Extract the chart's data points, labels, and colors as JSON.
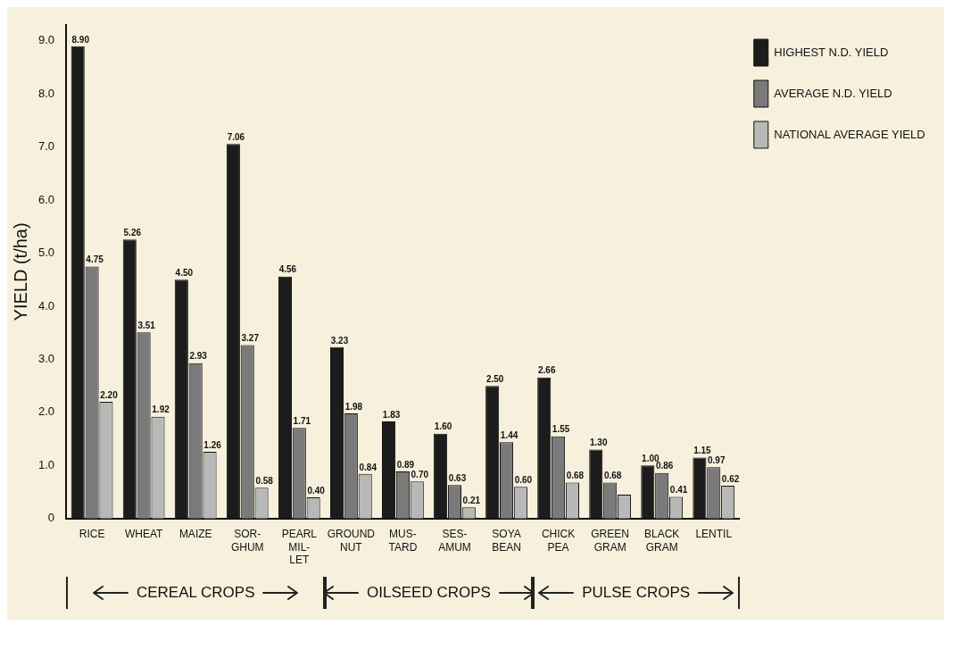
{
  "chart_data": {
    "type": "bar",
    "ylabel": "YIELD (t/ha)",
    "categories": [
      "RICE",
      "WHEAT",
      "MAIZE",
      "SOR-\nGHUM",
      "PEARL\nMIL-\nLET",
      "GROUND\nNUT",
      "MUS-\nTARD",
      "SES-\nAMUM",
      "SOYA\nBEAN",
      "CHICK\nPEA",
      "GREEN\nGRAM",
      "BLACK\nGRAM",
      "LENTIL"
    ],
    "series": [
      {
        "name": "HIGHEST N.D. YIELD",
        "color": "#1c1c1c",
        "values": [
          8.9,
          5.26,
          4.5,
          7.06,
          4.56,
          3.23,
          1.83,
          1.6,
          2.5,
          2.66,
          1.3,
          1.0,
          1.15
        ],
        "value_labels": [
          "8.90",
          "5.26",
          "4.50",
          "7.06",
          "4.56",
          "3.23",
          "1.83",
          "1.60",
          "2.50",
          "2.66",
          "1.30",
          "1.00",
          "1.15"
        ]
      },
      {
        "name": "AVERAGE N.D. YIELD",
        "color": "#7a7a7a",
        "values": [
          4.75,
          3.51,
          2.93,
          3.27,
          1.71,
          1.98,
          0.89,
          0.63,
          1.44,
          1.55,
          0.68,
          0.86,
          0.97
        ],
        "value_labels": [
          "4.75",
          "3.51",
          "2.93",
          "3.27",
          "1.71",
          "1.98",
          "0.89",
          "0.63",
          "1.44",
          "1.55",
          "0.68",
          "0.86",
          "0.97"
        ]
      },
      {
        "name": "NATIONAL AVERAGE YIELD",
        "color": "#b8b8b8",
        "values": [
          2.2,
          1.92,
          1.26,
          0.58,
          0.4,
          0.84,
          0.7,
          0.21,
          0.6,
          0.68,
          0.45,
          0.41,
          0.62
        ],
        "value_labels": [
          "2.20",
          "1.92",
          "1.26",
          "0.58",
          "0.40",
          "0.84",
          "0.70",
          "0.21",
          "0.60",
          "0.68",
          null,
          "0.41",
          "0.62"
        ]
      }
    ],
    "ylim": [
      0,
      9.3
    ],
    "yticks": [
      0,
      {
        "value": 1,
        "label": "1.0"
      },
      {
        "value": 2,
        "label": "2.0"
      },
      {
        "value": 3,
        "label": "3.0"
      },
      {
        "value": 4,
        "label": "4.0"
      },
      {
        "value": 5,
        "label": "5.0"
      },
      {
        "value": 6,
        "label": "6.0"
      },
      {
        "value": 7,
        "label": "7.0"
      },
      {
        "value": 8,
        "label": "8.0"
      },
      {
        "value": 9,
        "label": "9.0"
      }
    ],
    "legend": "top right",
    "annotations": [
      "CEREAL CROPS",
      "OILSEED CROPS",
      "PULSE CROPS"
    ]
  }
}
